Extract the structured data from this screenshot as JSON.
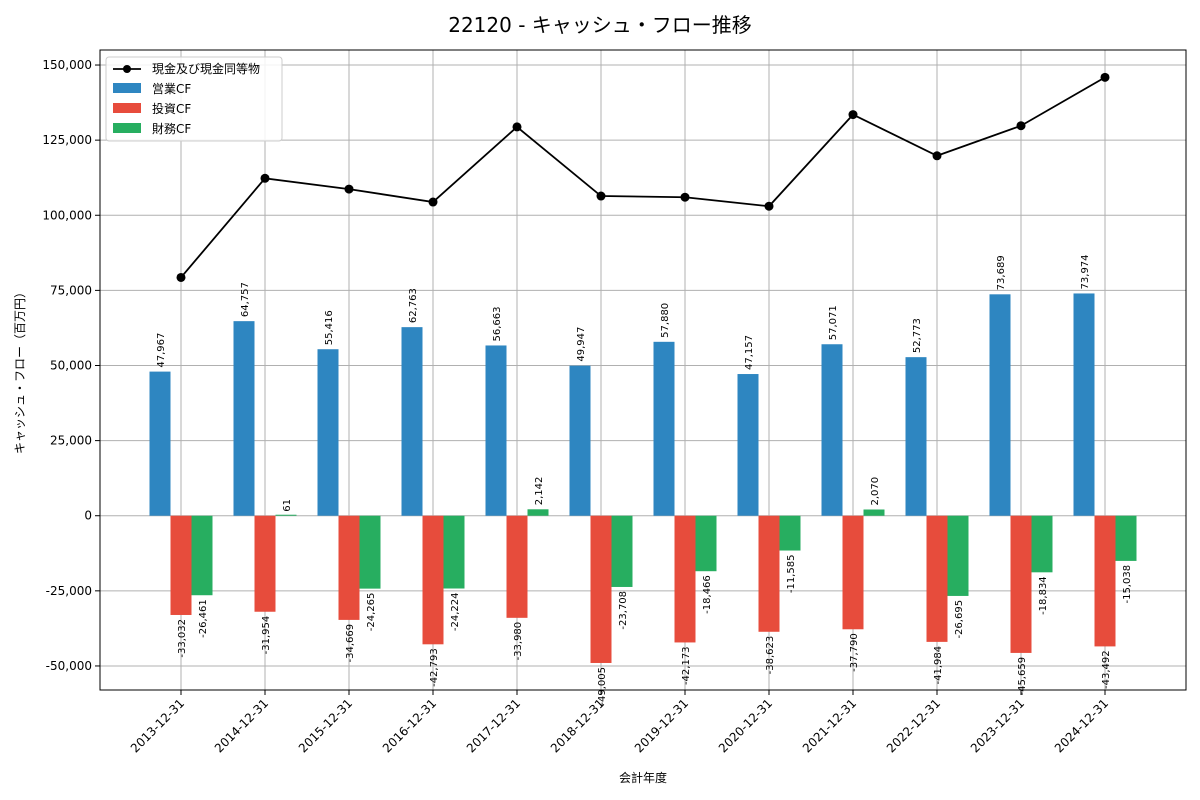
{
  "chart_data": {
    "type": "bar",
    "title": "22120 - キャッシュ・フロー推移",
    "xlabel": "会計年度",
    "ylabel": "キャッシュ・フロー（百万円）",
    "ylim": [
      -58000,
      155000
    ],
    "yticks": [
      -50000,
      -25000,
      0,
      25000,
      50000,
      75000,
      100000,
      125000,
      150000
    ],
    "ytick_labels": [
      "-50,000",
      "-25,000",
      "0",
      "25,000",
      "50,000",
      "75,000",
      "100,000",
      "125,000",
      "150,000"
    ],
    "grid": true,
    "legend_position": "top-left",
    "categories": [
      "2013-12-31",
      "2014-12-31",
      "2015-12-31",
      "2016-12-31",
      "2017-12-31",
      "2018-12-31",
      "2019-12-31",
      "2020-12-31",
      "2021-12-31",
      "2022-12-31",
      "2023-12-31",
      "2024-12-31"
    ],
    "series": [
      {
        "name": "営業CF",
        "kind": "bar",
        "color": "#2e86c1",
        "values": [
          47967,
          64757,
          55416,
          62763,
          56663,
          49947,
          57880,
          47157,
          57071,
          52773,
          73689,
          73974
        ],
        "labels": [
          "47,967",
          "64,757",
          "55,416",
          "62,763",
          "56,663",
          "49,947",
          "57,880",
          "47,157",
          "57,071",
          "52,773",
          "73,689",
          "73,974"
        ]
      },
      {
        "name": "投資CF",
        "kind": "bar",
        "color": "#e74c3c",
        "values": [
          -33032,
          -31954,
          -34669,
          -42793,
          -33980,
          -49005,
          -42173,
          -38623,
          -37790,
          -41984,
          -45659,
          -43492
        ],
        "labels": [
          "-33,032",
          "-31,954",
          "-34,669",
          "-42,793",
          "-33,980",
          "-49,005",
          "-42,173",
          "-38,623",
          "-37,790",
          "-41,984",
          "-45,659",
          "-43,492"
        ]
      },
      {
        "name": "財務CF",
        "kind": "bar",
        "color": "#27ae60",
        "values": [
          -26461,
          null,
          -24265,
          -24224,
          2142,
          -23708,
          -18466,
          -11585,
          2070,
          -26695,
          -18834,
          -15038
        ],
        "labels": [
          "-26,461",
          "",
          "-24,265",
          "-24,224",
          "2,142",
          "-23,708",
          "-18,466",
          "-11,585",
          "2,070",
          "-26,695",
          "-18,834",
          "-15,038"
        ],
        "extra_labels": [
          {
            "index": 1,
            "text": "61"
          }
        ]
      },
      {
        "name": "現金及び現金同等物",
        "kind": "line",
        "color": "#000000",
        "values": [
          79300,
          112300,
          108700,
          104400,
          129400,
          106400,
          106000,
          103000,
          133500,
          119800,
          129800,
          145900
        ]
      }
    ]
  }
}
